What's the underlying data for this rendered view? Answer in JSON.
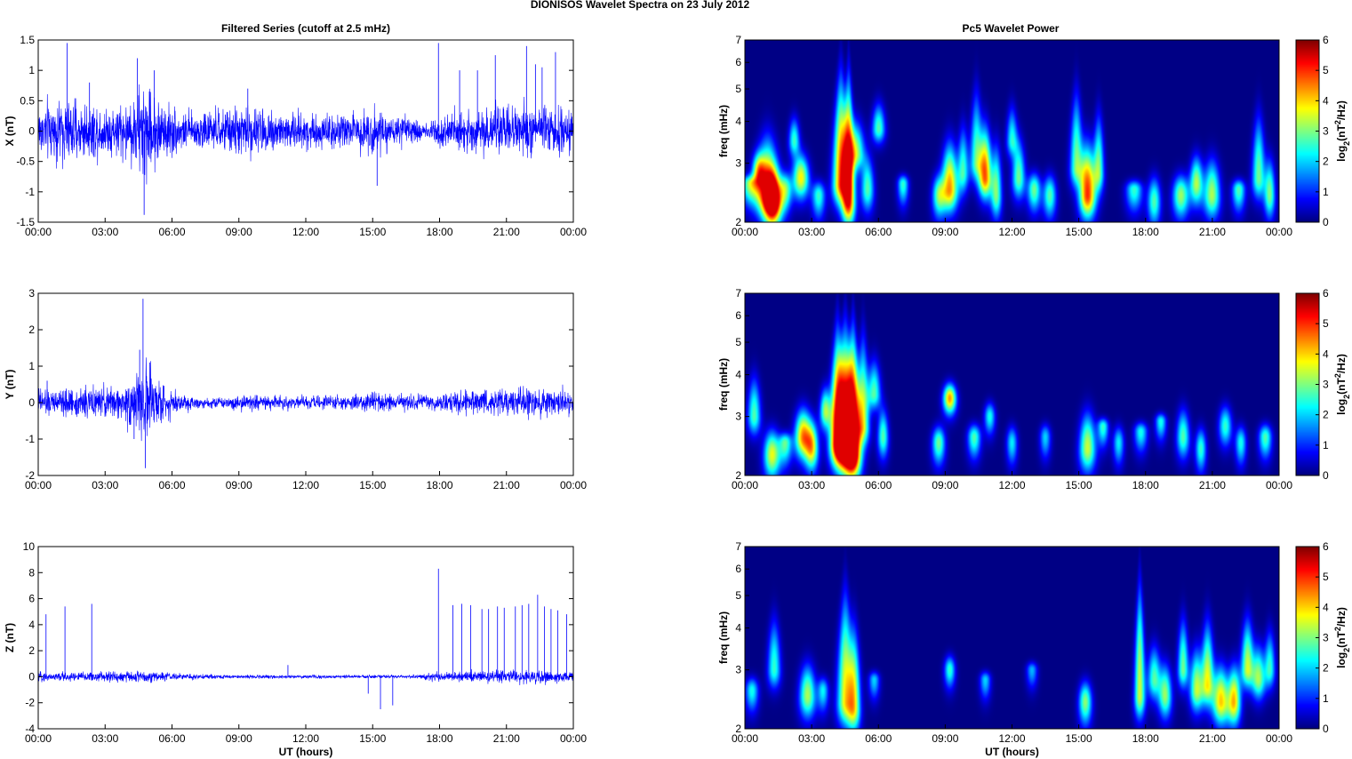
{
  "figure": {
    "suptitle": "DIONISOS Wavelet Spectra on 23 July      2012",
    "left_title": "Filtered Series (cutoff at 2.5 mHz)",
    "right_title": "Pc5 Wavelet Power"
  },
  "colors": {
    "line": "#0000ff",
    "axes": "#000000"
  },
  "colormap": "jet",
  "chart_data": [
    {
      "type": "line",
      "ylabel": "X (nT)",
      "xlabel": "",
      "xticks": [
        "00:00",
        "03:00",
        "06:00",
        "09:00",
        "12:00",
        "15:00",
        "18:00",
        "21:00",
        "00:00"
      ],
      "xlim_hours": [
        0,
        24
      ],
      "ylim": [
        -1.5,
        1.5
      ],
      "yticks": [
        -1.5,
        -1,
        -0.5,
        0,
        0.5,
        1,
        1.5
      ],
      "ytick_labels": [
        "-1.5",
        "-1",
        "-0.5",
        "0",
        "0.5",
        "1",
        "1.5"
      ],
      "series": [
        {
          "envelope": [
            [
              0,
              0.4
            ],
            [
              1,
              0.45
            ],
            [
              2,
              0.4
            ],
            [
              3,
              0.35
            ],
            [
              4,
              0.4
            ],
            [
              4.7,
              0.7
            ],
            [
              5.5,
              0.45
            ],
            [
              6.5,
              0.25
            ],
            [
              8,
              0.3
            ],
            [
              9.5,
              0.35
            ],
            [
              11,
              0.3
            ],
            [
              12.5,
              0.25
            ],
            [
              14,
              0.25
            ],
            [
              15,
              0.35
            ],
            [
              16,
              0.2
            ],
            [
              17.5,
              0.15
            ],
            [
              18,
              0.25
            ],
            [
              19,
              0.3
            ],
            [
              21,
              0.35
            ],
            [
              22.5,
              0.35
            ],
            [
              24,
              0.3
            ]
          ],
          "spikes": [
            [
              1.3,
              1.45
            ],
            [
              4.45,
              1.2
            ],
            [
              4.75,
              -1.38
            ],
            [
              5.2,
              1.0
            ],
            [
              15.2,
              -0.9
            ],
            [
              17.95,
              1.45
            ],
            [
              18.9,
              1.0
            ],
            [
              19.7,
              1.0
            ],
            [
              20.5,
              1.25
            ],
            [
              21.9,
              1.4
            ],
            [
              22.3,
              1.1
            ],
            [
              22.6,
              1.05
            ],
            [
              23.2,
              1.3
            ],
            [
              9.4,
              0.7
            ],
            [
              2.3,
              0.8
            ]
          ]
        }
      ]
    },
    {
      "type": "line",
      "ylabel": "Y (nT)",
      "xlabel": "",
      "xticks": [
        "00:00",
        "03:00",
        "06:00",
        "09:00",
        "12:00",
        "15:00",
        "18:00",
        "21:00",
        "00:00"
      ],
      "xlim_hours": [
        0,
        24
      ],
      "ylim": [
        -2,
        3
      ],
      "yticks": [
        -2,
        -1,
        0,
        1,
        2,
        3
      ],
      "ytick_labels": [
        "-2",
        "-1",
        "0",
        "1",
        "2",
        "3"
      ],
      "series": [
        {
          "envelope": [
            [
              0,
              0.3
            ],
            [
              2,
              0.35
            ],
            [
              3.5,
              0.35
            ],
            [
              4.3,
              0.7
            ],
            [
              4.8,
              0.9
            ],
            [
              5.3,
              0.6
            ],
            [
              6,
              0.3
            ],
            [
              7,
              0.15
            ],
            [
              8,
              0.12
            ],
            [
              9.5,
              0.2
            ],
            [
              11,
              0.15
            ],
            [
              13,
              0.15
            ],
            [
              15.5,
              0.25
            ],
            [
              17,
              0.2
            ],
            [
              19,
              0.25
            ],
            [
              20.5,
              0.3
            ],
            [
              22,
              0.35
            ],
            [
              24,
              0.3
            ]
          ],
          "spikes": [
            [
              4.7,
              2.85
            ],
            [
              4.55,
              1.45
            ],
            [
              4.8,
              -1.8
            ],
            [
              5.0,
              1.1
            ],
            [
              4.3,
              -1.0
            ],
            [
              0.4,
              0.6
            ]
          ]
        }
      ]
    },
    {
      "type": "line",
      "ylabel": "Z (nT)",
      "xlabel": "UT (hours)",
      "xticks": [
        "00:00",
        "03:00",
        "06:00",
        "09:00",
        "12:00",
        "15:00",
        "18:00",
        "21:00",
        "00:00"
      ],
      "xlim_hours": [
        0,
        24
      ],
      "ylim": [
        -4,
        10
      ],
      "yticks": [
        -4,
        -2,
        0,
        2,
        4,
        6,
        8,
        10
      ],
      "ytick_labels": [
        "-4",
        "-2",
        "0",
        "2",
        "4",
        "6",
        "8",
        "10"
      ],
      "series": [
        {
          "envelope": [
            [
              0,
              0.3
            ],
            [
              3,
              0.35
            ],
            [
              4.5,
              0.4
            ],
            [
              5.5,
              0.3
            ],
            [
              7,
              0.15
            ],
            [
              10,
              0.12
            ],
            [
              14,
              0.1
            ],
            [
              17,
              0.12
            ],
            [
              18,
              0.35
            ],
            [
              20,
              0.4
            ],
            [
              22,
              0.45
            ],
            [
              24,
              0.35
            ]
          ],
          "spikes": [
            [
              0.35,
              4.8
            ],
            [
              1.2,
              5.4
            ],
            [
              2.4,
              5.6
            ],
            [
              11.2,
              0.9
            ],
            [
              14.8,
              -1.3
            ],
            [
              15.35,
              -2.5
            ],
            [
              15.9,
              -2.2
            ],
            [
              17.95,
              8.3
            ],
            [
              18.6,
              5.5
            ],
            [
              19.0,
              5.6
            ],
            [
              19.4,
              5.5
            ],
            [
              19.9,
              5.2
            ],
            [
              20.2,
              5.2
            ],
            [
              20.6,
              5.4
            ],
            [
              20.9,
              5.3
            ],
            [
              21.4,
              5.4
            ],
            [
              21.7,
              5.5
            ],
            [
              22.0,
              5.6
            ],
            [
              22.4,
              6.3
            ],
            [
              22.7,
              5.4
            ],
            [
              23.0,
              5.2
            ],
            [
              23.3,
              5.1
            ],
            [
              23.7,
              4.8
            ]
          ]
        }
      ]
    },
    {
      "type": "heatmap",
      "ylabel": "freq (mHz)",
      "xlabel": "",
      "y_scale": "log",
      "ylim": [
        2,
        7
      ],
      "yticks": [
        2,
        3,
        4,
        5,
        6,
        7
      ],
      "xticks": [
        "00:00",
        "03:00",
        "06:00",
        "09:00",
        "12:00",
        "15:00",
        "18:00",
        "21:00",
        "00:00"
      ],
      "xlim_hours": [
        0,
        24
      ],
      "colorbar": {
        "label_base": "log",
        "label_sub": "2",
        "label_rest": "(nT",
        "label_sup": "2",
        "label_end": "/Hz)",
        "range": [
          0,
          6
        ],
        "ticks": [
          0,
          1,
          2,
          3,
          4,
          5,
          6
        ]
      },
      "bursts": [
        [
          0.2,
          2.6,
          2.5,
          0.15,
          3.3
        ],
        [
          0.6,
          2.8,
          3.5,
          0.12,
          3.6
        ],
        [
          1.0,
          2.4,
          4.2,
          0.2,
          5.2
        ],
        [
          1.25,
          2.3,
          3.2,
          0.15,
          5.8
        ],
        [
          1.8,
          2.5,
          3.0,
          0.12,
          3.0
        ],
        [
          2.5,
          2.7,
          3.5,
          0.15,
          4.2
        ],
        [
          2.2,
          3.5,
          4.5,
          0.1,
          2.8
        ],
        [
          3.3,
          2.4,
          2.8,
          0.12,
          2.8
        ],
        [
          4.3,
          2.6,
          7.0,
          0.15,
          5.0
        ],
        [
          4.65,
          2.3,
          7.0,
          0.12,
          5.5
        ],
        [
          5.0,
          3.2,
          4.5,
          0.15,
          3.4
        ],
        [
          5.5,
          2.5,
          3.5,
          0.12,
          3.0
        ],
        [
          6.0,
          3.8,
          5.0,
          0.12,
          3.0
        ],
        [
          7.1,
          2.6,
          2.8,
          0.1,
          2.8
        ],
        [
          8.7,
          2.4,
          3.0,
          0.12,
          3.0
        ],
        [
          9.2,
          2.5,
          4.0,
          0.15,
          4.8
        ],
        [
          9.8,
          2.8,
          4.5,
          0.1,
          2.8
        ],
        [
          10.4,
          3.0,
          6.0,
          0.12,
          3.0
        ],
        [
          10.8,
          2.7,
          4.5,
          0.12,
          5.0
        ],
        [
          11.3,
          2.4,
          4.0,
          0.1,
          3.2
        ],
        [
          12.0,
          3.5,
          5.0,
          0.1,
          2.6
        ],
        [
          12.3,
          2.7,
          4.0,
          0.12,
          3.2
        ],
        [
          13.0,
          2.5,
          3.0,
          0.12,
          3.2
        ],
        [
          13.7,
          2.4,
          3.0,
          0.12,
          3.0
        ],
        [
          14.9,
          2.9,
          6.0,
          0.12,
          3.2
        ],
        [
          15.4,
          2.4,
          4.0,
          0.15,
          5.5
        ],
        [
          15.9,
          2.8,
          5.0,
          0.1,
          3.2
        ],
        [
          17.5,
          2.5,
          2.5,
          0.15,
          2.8
        ],
        [
          18.4,
          2.3,
          3.0,
          0.12,
          3.0
        ],
        [
          19.6,
          2.4,
          3.0,
          0.15,
          3.5
        ],
        [
          20.3,
          2.6,
          3.5,
          0.12,
          3.6
        ],
        [
          21.0,
          2.4,
          3.5,
          0.15,
          3.6
        ],
        [
          22.2,
          2.5,
          2.8,
          0.12,
          3.0
        ],
        [
          23.1,
          2.7,
          5.0,
          0.12,
          3.2
        ],
        [
          23.6,
          2.4,
          3.5,
          0.1,
          3.2
        ]
      ]
    },
    {
      "type": "heatmap",
      "ylabel": "freq (mHz)",
      "xlabel": "",
      "y_scale": "log",
      "ylim": [
        2,
        7
      ],
      "yticks": [
        2,
        3,
        4,
        5,
        6,
        7
      ],
      "xticks": [
        "00:00",
        "03:00",
        "06:00",
        "09:00",
        "12:00",
        "15:00",
        "18:00",
        "21:00",
        "00:00"
      ],
      "xlim_hours": [
        0,
        24
      ],
      "colorbar": {
        "label_base": "log",
        "label_sub": "2",
        "label_rest": "(nT",
        "label_sup": "2",
        "label_end": "/Hz)",
        "range": [
          0,
          6
        ],
        "ticks": [
          0,
          1,
          2,
          3,
          4,
          5,
          6
        ]
      },
      "bursts": [
        [
          0.4,
          3.0,
          4.5,
          0.12,
          3.0
        ],
        [
          1.2,
          2.3,
          3.0,
          0.15,
          4.0
        ],
        [
          1.8,
          2.5,
          2.8,
          0.12,
          3.0
        ],
        [
          2.6,
          2.6,
          3.5,
          0.15,
          4.8
        ],
        [
          3.0,
          2.4,
          3.2,
          0.12,
          3.8
        ],
        [
          3.6,
          3.1,
          4.0,
          0.1,
          3.4
        ],
        [
          4.15,
          2.5,
          7.0,
          0.15,
          5.2
        ],
        [
          4.5,
          2.4,
          7.0,
          0.18,
          6.0
        ],
        [
          4.85,
          2.3,
          7.0,
          0.15,
          6.0
        ],
        [
          5.3,
          2.8,
          6.5,
          0.12,
          3.6
        ],
        [
          5.8,
          3.5,
          5.0,
          0.12,
          3.0
        ],
        [
          6.2,
          2.6,
          3.5,
          0.1,
          3.0
        ],
        [
          9.2,
          3.4,
          4.0,
          0.12,
          4.8
        ],
        [
          8.7,
          2.5,
          3.0,
          0.12,
          3.2
        ],
        [
          10.3,
          2.6,
          3.0,
          0.12,
          3.0
        ],
        [
          11.0,
          3.0,
          3.5,
          0.1,
          2.6
        ],
        [
          12.0,
          2.5,
          3.0,
          0.1,
          2.4
        ],
        [
          13.5,
          2.6,
          3.0,
          0.1,
          2.2
        ],
        [
          15.4,
          2.4,
          3.5,
          0.15,
          3.8
        ],
        [
          16.1,
          2.8,
          3.0,
          0.1,
          2.8
        ],
        [
          16.8,
          2.5,
          3.0,
          0.1,
          2.4
        ],
        [
          17.8,
          2.7,
          3.0,
          0.12,
          2.6
        ],
        [
          18.7,
          2.9,
          3.0,
          0.1,
          2.6
        ],
        [
          19.7,
          2.6,
          3.5,
          0.12,
          3.0
        ],
        [
          20.5,
          2.4,
          3.0,
          0.1,
          2.8
        ],
        [
          21.6,
          2.8,
          3.5,
          0.12,
          2.8
        ],
        [
          22.3,
          2.5,
          3.0,
          0.1,
          2.6
        ],
        [
          23.4,
          2.6,
          3.0,
          0.12,
          3.0
        ]
      ]
    },
    {
      "type": "heatmap",
      "ylabel": "freq (mHz)",
      "xlabel": "UT (hours)",
      "y_scale": "log",
      "ylim": [
        2,
        7
      ],
      "yticks": [
        2,
        3,
        4,
        5,
        6,
        7
      ],
      "xticks": [
        "00:00",
        "03:00",
        "06:00",
        "09:00",
        "12:00",
        "15:00",
        "18:00",
        "21:00",
        "00:00"
      ],
      "xlim_hours": [
        0,
        24
      ],
      "colorbar": {
        "label_base": "log",
        "label_sub": "2",
        "label_rest": "(nT",
        "label_sup": "2",
        "label_end": "/Hz)",
        "range": [
          0,
          6
        ],
        "ticks": [
          0,
          1,
          2,
          3,
          4,
          5,
          6
        ]
      },
      "bursts": [
        [
          0.3,
          2.6,
          3.0,
          0.12,
          2.6
        ],
        [
          1.3,
          3.0,
          5.0,
          0.12,
          2.8
        ],
        [
          2.8,
          2.5,
          3.5,
          0.15,
          3.6
        ],
        [
          3.5,
          2.6,
          3.0,
          0.1,
          2.4
        ],
        [
          4.5,
          2.4,
          6.5,
          0.15,
          4.0
        ],
        [
          4.9,
          2.3,
          5.0,
          0.12,
          3.6
        ],
        [
          5.8,
          2.8,
          3.0,
          0.1,
          2.2
        ],
        [
          9.2,
          3.0,
          3.5,
          0.1,
          2.8
        ],
        [
          10.8,
          2.8,
          3.0,
          0.1,
          2.2
        ],
        [
          12.9,
          3.0,
          3.0,
          0.1,
          2.0
        ],
        [
          15.3,
          2.4,
          3.0,
          0.12,
          3.4
        ],
        [
          17.75,
          2.5,
          7.0,
          0.1,
          3.8
        ],
        [
          18.4,
          2.8,
          4.0,
          0.12,
          3.0
        ],
        [
          18.9,
          2.5,
          3.5,
          0.12,
          3.4
        ],
        [
          19.7,
          3.0,
          5.0,
          0.1,
          3.2
        ],
        [
          20.3,
          2.6,
          4.0,
          0.12,
          3.6
        ],
        [
          20.8,
          2.7,
          5.0,
          0.12,
          4.0
        ],
        [
          21.4,
          2.4,
          3.5,
          0.15,
          4.4
        ],
        [
          22.0,
          2.4,
          3.5,
          0.12,
          4.4
        ],
        [
          22.6,
          3.0,
          5.0,
          0.12,
          3.8
        ],
        [
          23.1,
          2.8,
          4.0,
          0.12,
          3.4
        ],
        [
          23.6,
          3.0,
          4.5,
          0.1,
          2.8
        ]
      ]
    }
  ]
}
